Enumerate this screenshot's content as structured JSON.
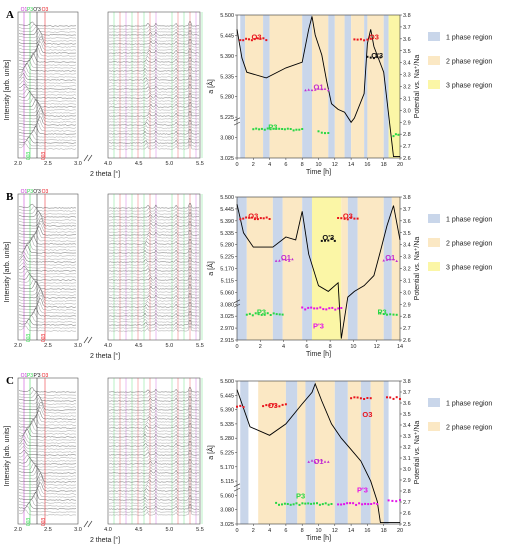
{
  "colors": {
    "one_phase": "#c9d6ea",
    "two_phase": "#fbe8c4",
    "three_phase": "#fbf6a6",
    "O3": "#e8141c",
    "P3": "#27d645",
    "O1": "#c22cd1",
    "P3prime": "#e312e8",
    "O3prime": "#111111",
    "curve": "#000000",
    "xrd": "#333333"
  },
  "panels": [
    {
      "label": "A",
      "xrd": {
        "ylabel": "Intensity [arb. units]",
        "xlabel": "2 theta [°]",
        "left_ticks": [
          "2.0",
          "2.5",
          "3.0"
        ],
        "right_ticks": [
          "4.0",
          "4.5",
          "5.0",
          "5.5"
        ],
        "top_markers": [
          "O1",
          "P3",
          "O'3",
          "O3"
        ],
        "bottom_markers": [
          "003",
          "003"
        ]
      },
      "electro": {
        "y_ticks": [
          "5.500",
          "5.445",
          "5.390",
          "5.335",
          "5.280",
          "5.225",
          "3.080",
          "3.025"
        ],
        "y2_ticks": [
          "3.8",
          "3.7",
          "3.6",
          "3.5",
          "3.4",
          "3.3",
          "3.2",
          "3.1",
          "3.0",
          "2.9",
          "2.8",
          "2.7",
          "2.6"
        ],
        "x_ticks": [
          "0",
          "2",
          "4",
          "6",
          "8",
          "10",
          "12",
          "14",
          "16",
          "18",
          "20"
        ],
        "ylabel": "a [Å]",
        "y2label": "Potential vs. Na⁺/Na",
        "xlabel": "Time [h]",
        "phase_labels": [
          "O3",
          "O3",
          "O'3",
          "O1",
          "P3"
        ],
        "legend": [
          "1 phase region",
          "2 phase region",
          "3 phase region"
        ]
      }
    },
    {
      "label": "B",
      "xrd": {
        "ylabel": "Intensity [arb. units]",
        "xlabel": "2 theta [°]",
        "left_ticks": [
          "2.0",
          "2.5",
          "3.0"
        ],
        "right_ticks": [
          "4.0",
          "4.5",
          "5.0",
          "5.5"
        ],
        "top_markers": [
          "O1",
          "P3",
          "O'3",
          "O3"
        ],
        "bottom_markers": [
          "003",
          "003"
        ]
      },
      "electro": {
        "y_ticks": [
          "5.500",
          "5.445",
          "5.390",
          "5.335",
          "5.280",
          "5.225",
          "5.170",
          "5.115",
          "5.060",
          "3.080",
          "3.025",
          "2.970",
          "2.915"
        ],
        "y2_ticks": [
          "3.8",
          "3.7",
          "3.6",
          "3.5",
          "3.4",
          "3.3",
          "3.2",
          "3.1",
          "3.0",
          "2.9",
          "2.8",
          "2.7",
          "2.6"
        ],
        "x_ticks": [
          "0",
          "2",
          "4",
          "6",
          "8",
          "10",
          "12",
          "14"
        ],
        "ylabel": "a [Å]",
        "y2label": "Potential vs. Na⁺/Na",
        "xlabel": "Time [h]",
        "phase_labels": [
          "O3",
          "O3",
          "O'3",
          "O1",
          "O1",
          "P3",
          "P3",
          "P'3"
        ],
        "legend": [
          "1 phase region",
          "2 phase region",
          "3 phase region"
        ]
      }
    },
    {
      "label": "C",
      "xrd": {
        "ylabel": "Intensity [arb. units]",
        "xlabel": "2 theta [°]",
        "left_ticks": [
          "2.0",
          "2.5",
          "3.0"
        ],
        "right_ticks": [
          "4.0",
          "4.5",
          "5.0",
          "5.5"
        ],
        "top_markers": [
          "O1",
          "P3",
          "P'3",
          "O3"
        ],
        "bottom_markers": [
          "003",
          "003"
        ]
      },
      "electro": {
        "y_ticks": [
          "5.500",
          "5.445",
          "5.390",
          "5.335",
          "5.280",
          "5.225",
          "5.170",
          "5.115",
          "5.060",
          "3.080",
          "3.025"
        ],
        "y2_ticks": [
          "3.8",
          "3.7",
          "3.6",
          "3.5",
          "3.4",
          "3.3",
          "3.2",
          "3.1",
          "3.0",
          "2.9",
          "2.8",
          "2.7",
          "2.6",
          "2.5"
        ],
        "x_ticks": [
          "0",
          "2",
          "4",
          "6",
          "8",
          "10",
          "12",
          "14",
          "16",
          "18",
          "20"
        ],
        "ylabel": "a [Å]",
        "y2label": "Potential vs. Na⁺/Na",
        "xlabel": "Time [h]",
        "phase_labels": [
          "O3",
          "O3",
          "O1",
          "P3",
          "P'3"
        ],
        "legend": [
          "1 phase region",
          "2 phase region"
        ]
      }
    }
  ]
}
